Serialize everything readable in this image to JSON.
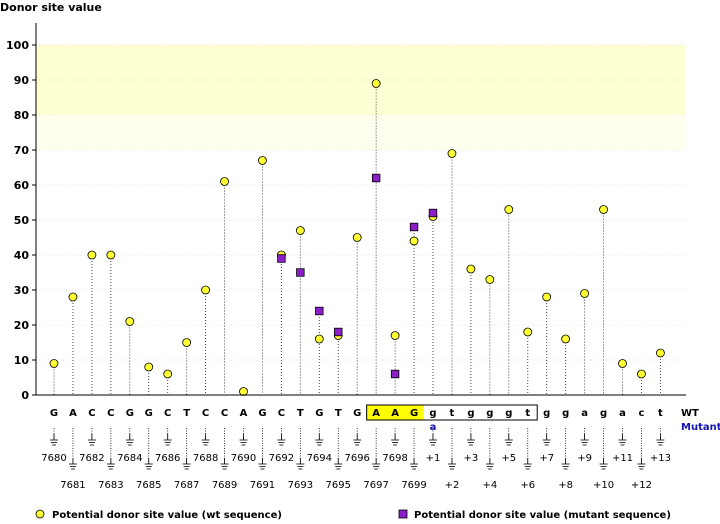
{
  "chart_data": {
    "type": "scatter",
    "title": "",
    "ylabel": "Donor site value",
    "xlabel": "",
    "ylim": [
      0,
      100
    ],
    "yticks": [
      0,
      10,
      20,
      30,
      40,
      50,
      60,
      70,
      80,
      90,
      100
    ],
    "grid": true,
    "highlight_bands": [
      {
        "from": 80,
        "to": 100,
        "color": "#ffffd4"
      },
      {
        "from": 70,
        "to": 80,
        "color": "#fffff0"
      }
    ],
    "sequence": [
      "G",
      "A",
      "C",
      "C",
      "G",
      "G",
      "C",
      "T",
      "C",
      "C",
      "A",
      "G",
      "C",
      "T",
      "G",
      "T",
      "G",
      "A",
      "A",
      "G",
      "g",
      "t",
      "g",
      "g",
      "g",
      "t",
      "g",
      "g",
      "a",
      "g",
      "a",
      "c",
      "t"
    ],
    "mutant_letters": [
      {
        "index": 20,
        "letter": "a"
      }
    ],
    "boxed_range": [
      17,
      25
    ],
    "highlighted_range": [
      17,
      19
    ],
    "wt_label": "WT",
    "mutant_label": "Mutant",
    "position_labels": [
      "7680",
      "7681",
      "7682",
      "7683",
      "7684",
      "7685",
      "7686",
      "7687",
      "7688",
      "7689",
      "7690",
      "7691",
      "7692",
      "7693",
      "7694",
      "7695",
      "7696",
      "7697",
      "7698",
      "7699",
      "+1",
      "+2",
      "+3",
      "+4",
      "+5",
      "+6",
      "+7",
      "+8",
      "+9",
      "+10",
      "+11",
      "+12",
      "+13"
    ],
    "series": [
      {
        "name": "Potential donor site value (wt sequence)",
        "marker": "circle",
        "color": "#ffff33",
        "values": [
          9,
          28,
          40,
          40,
          21,
          8,
          6,
          15,
          30,
          61,
          1,
          67,
          40,
          47,
          16,
          17,
          45,
          89,
          17,
          44,
          51,
          69,
          36,
          33,
          53,
          18,
          28,
          16,
          29,
          53,
          9,
          6,
          12
        ]
      },
      {
        "name": "Potential donor site value (mutant sequence)",
        "marker": "square",
        "color": "#8a1fc8",
        "values": [
          null,
          null,
          null,
          null,
          null,
          null,
          null,
          null,
          null,
          null,
          null,
          null,
          39,
          35,
          24,
          18,
          null,
          62,
          6,
          48,
          52,
          null,
          null,
          null,
          null,
          null,
          null,
          null,
          null,
          null,
          null,
          null,
          null
        ]
      }
    ],
    "legend_position": "bottom"
  },
  "colors": {
    "wt_marker": "#ffff33",
    "mutant_marker": "#8a1fc8",
    "exon_highlight": "#ffff00",
    "mutant_text": "#1414b4"
  }
}
